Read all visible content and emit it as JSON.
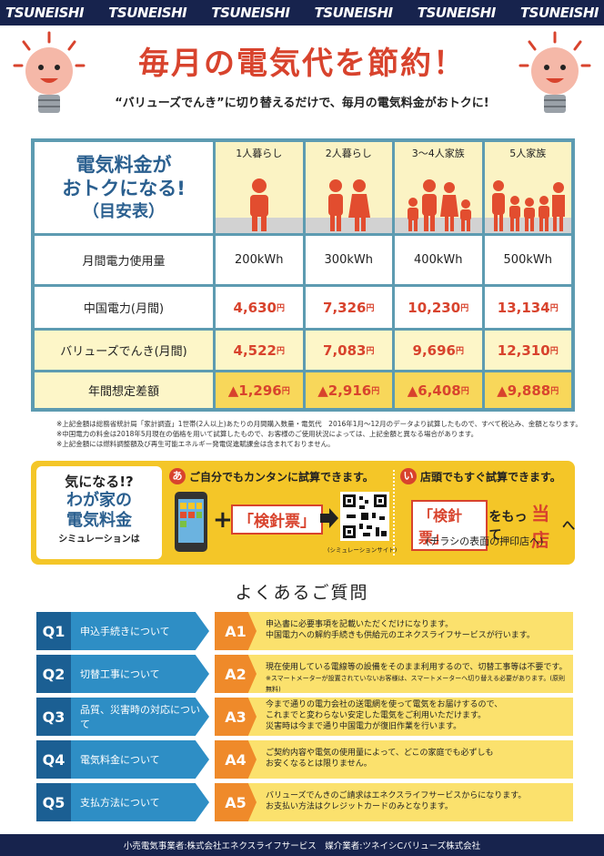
{
  "brand": {
    "repeat": [
      "TSUNEISHI",
      "TSUNEISHI",
      "TSUNEISHI",
      "TSUNEISHI",
      "TSUNEISHI",
      "TSUNEISHI"
    ]
  },
  "header": {
    "title": "毎月の電気代を節約！",
    "subtitle": "“バリューズでんき”に切り替えるだけで、毎月の電気料金がおトクに!"
  },
  "table": {
    "label_line1": "電気料金が",
    "label_line2": "おトクになる!",
    "label_line3": "（目安表）",
    "columns": [
      "1人暮らし",
      "2人暮らし",
      "3～4人家族",
      "5人家族"
    ],
    "rows": {
      "usage": {
        "label": "月間電力使用量",
        "values": [
          "200kWh",
          "300kWh",
          "400kWh",
          "500kWh"
        ]
      },
      "chugoku": {
        "label": "中国電力(月間)",
        "values": [
          "4,630",
          "7,326",
          "10,230",
          "13,134"
        ]
      },
      "values": {
        "label": "バリューズでんき(月間)",
        "values": [
          "4,522",
          "7,083",
          "9,696",
          "12,310"
        ]
      },
      "diff": {
        "label": "年間想定差額",
        "values": [
          "▲1,296",
          "▲2,916",
          "▲6,408",
          "▲9,888"
        ]
      }
    },
    "unit": "円"
  },
  "notes": [
    "※上記金額は総務省統計局「家計調査」1世帯(2人以上)あたりの月間購入数量・電気代　2016年1月～12月のデータより試算したもので、すべて税込み、金額となります。",
    "※中国電力の料金は2018年5月現在の価格を用いて試算したもので、お客様のご使用状況によっては、上記金額と異なる場合があります。",
    "※上記金額には燃料調整額及び再生可能エネルギー発電促進賦課金は含まれておりません。"
  ],
  "simulation": {
    "left_line1": "気になる!?",
    "left_line2": "わが家の",
    "left_line3": "電気料金",
    "left_line4": "シミュレーションは",
    "a_badge": "あ",
    "a_text": "ご自分でもカンタンに試算できます。",
    "plus": "+",
    "kenshin": "「検針票」",
    "qr_caption": "(シミュレーションサイト)",
    "b_badge": "い",
    "b_text": "店頭でもすぐ試算できます。",
    "b_kenshin": "「検針票」",
    "b_motte": "をもって",
    "b_store": "当店",
    "b_he": "へ",
    "b_note": "(チラシの表面の押印店へ)"
  },
  "faq": {
    "title": "よくあるご質問",
    "items": [
      {
        "q": "Q1",
        "qtext": "申込手続きについて",
        "a": "A1",
        "atext": "申込書に必要事項を記載いただくだけになります。\n中国電力への解約手続きも供給元のエネクスライフサービスが行います。",
        "anote": ""
      },
      {
        "q": "Q2",
        "qtext": "切替工事について",
        "a": "A2",
        "atext": "現在使用している電線等の設備をそのまま利用するので、切替工事等は不要です。",
        "anote": "※スマートメーターが設置されていないお客様は、スマートメーターへ切り替える必要があります。(原則無料)"
      },
      {
        "q": "Q3",
        "qtext": "品質、災害時の対応について",
        "a": "A3",
        "atext": "今まで通りの電力会社の送電網を使って電気をお届けするので、\nこれまでと変わらない安定した電気をご利用いただけます。\n災害時は今まで通り中国電力が復旧作業を行います。",
        "anote": ""
      },
      {
        "q": "Q4",
        "qtext": "電気料金について",
        "a": "A4",
        "atext": "ご契約内容や電気の使用量によって、どこの家庭でも必ずしも\nお安くなるとは限りません。",
        "anote": ""
      },
      {
        "q": "Q5",
        "qtext": "支払方法について",
        "a": "A5",
        "atext": "バリューズでんきのご請求はエネクスライフサービスからになります。\nお支払い方法はクレジットカードのみとなります。",
        "anote": ""
      }
    ]
  },
  "footer": {
    "text": "小売電気事業者:株式会社エネクスライフサービス　媒介業者:ツネイシCバリューズ株式会社"
  },
  "colors": {
    "navy": "#17234d",
    "red": "#d8432d",
    "teal": "#5d9bb1",
    "yellow": "#f4c628",
    "blue": "#2e8ec5",
    "orange": "#ef8a2a"
  }
}
